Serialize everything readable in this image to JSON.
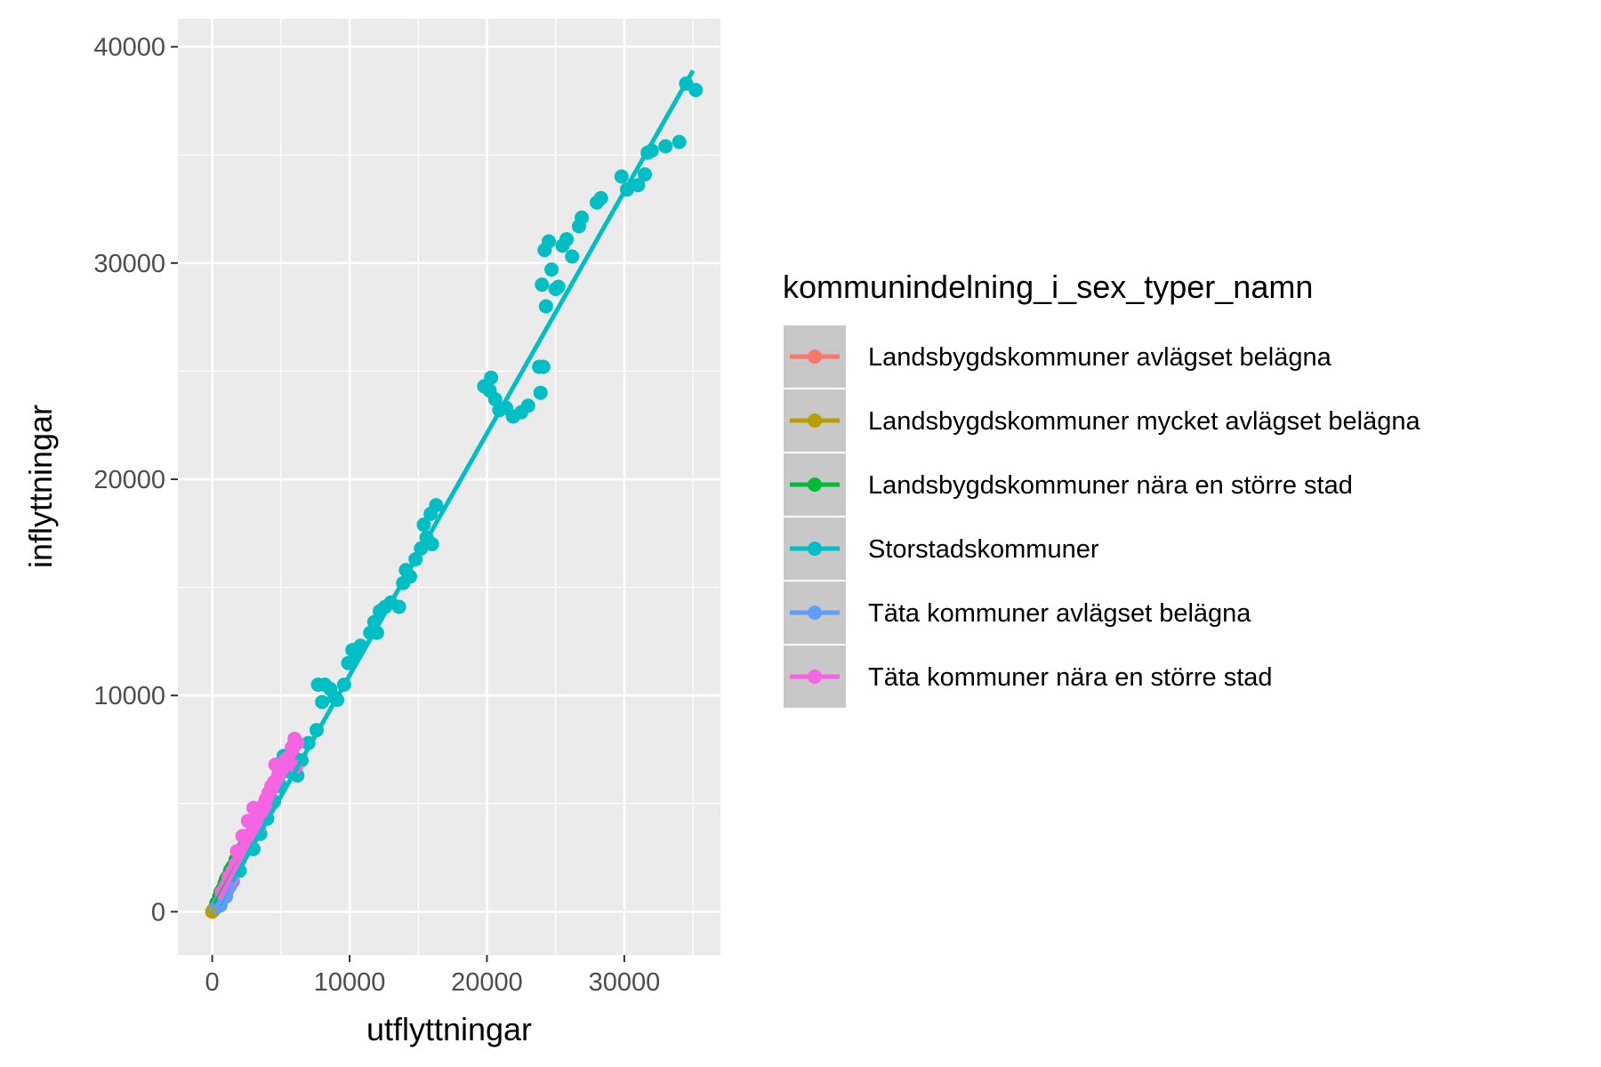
{
  "chart_data": {
    "type": "scatter",
    "title": "",
    "xlabel": "utflyttningar",
    "ylabel": "inflyttningar",
    "xlim": [
      -2500,
      37000
    ],
    "ylim": [
      -2000,
      41300
    ],
    "x_ticks": [
      0,
      10000,
      20000,
      30000
    ],
    "x_tick_labels": [
      "0",
      "10000",
      "20000",
      "30000"
    ],
    "y_ticks": [
      0,
      10000,
      20000,
      30000,
      40000
    ],
    "y_tick_labels": [
      "0",
      "10000",
      "20000",
      "30000",
      "40000"
    ],
    "grid": true,
    "legend": {
      "title": "kommunindelning_i_sex_typer_namn",
      "position": "right"
    },
    "series": [
      {
        "name": "Landsbygdskommuner avlägset belägna",
        "color": "#F8766D",
        "fit": [
          [
            0,
            20
          ],
          [
            350,
            330
          ]
        ],
        "points": [
          [
            0,
            0
          ],
          [
            50,
            40
          ],
          [
            100,
            70
          ],
          [
            150,
            120
          ],
          [
            80,
            60
          ],
          [
            200,
            180
          ],
          [
            120,
            100
          ],
          [
            250,
            210
          ],
          [
            60,
            50
          ],
          [
            180,
            150
          ]
        ]
      },
      {
        "name": "Landsbygdskommuner mycket avlägset belägna",
        "color": "#B79F00",
        "fit": [
          [
            0,
            10
          ],
          [
            250,
            240
          ]
        ],
        "points": [
          [
            20,
            15
          ],
          [
            60,
            50
          ],
          [
            100,
            90
          ],
          [
            150,
            130
          ],
          [
            200,
            170
          ],
          [
            80,
            80
          ]
        ]
      },
      {
        "name": "Landsbygdskommuner nära en större stad",
        "color": "#00BA38",
        "fit": [
          [
            200,
            350
          ],
          [
            2800,
            3300
          ]
        ],
        "points": [
          [
            300,
            400
          ],
          [
            500,
            700
          ],
          [
            700,
            1000
          ],
          [
            900,
            1300
          ],
          [
            1100,
            1600
          ],
          [
            1300,
            1900
          ],
          [
            1500,
            2100
          ],
          [
            1700,
            2400
          ],
          [
            1900,
            2600
          ],
          [
            2100,
            2800
          ],
          [
            600,
            900
          ],
          [
            1000,
            1500
          ],
          [
            1400,
            2000
          ],
          [
            2300,
            3000
          ],
          [
            800,
            1100
          ]
        ]
      },
      {
        "name": "Storstadskommuner",
        "color": "#00BFC4",
        "fit": [
          [
            500,
            300
          ],
          [
            35000,
            38900
          ]
        ],
        "points": [
          [
            1000,
            800
          ],
          [
            2000,
            1900
          ],
          [
            3000,
            2900
          ],
          [
            3500,
            3600
          ],
          [
            4000,
            4300
          ],
          [
            4500,
            5100
          ],
          [
            5000,
            5800
          ],
          [
            5500,
            6500
          ],
          [
            6000,
            7100
          ],
          [
            6500,
            7000
          ],
          [
            5200,
            7200
          ],
          [
            5800,
            7500
          ],
          [
            6200,
            6300
          ],
          [
            4800,
            6200
          ],
          [
            7000,
            7800
          ],
          [
            7600,
            8400
          ],
          [
            8000,
            9700
          ],
          [
            8200,
            10500
          ],
          [
            8600,
            10300
          ],
          [
            8900,
            9900
          ],
          [
            7700,
            10500
          ],
          [
            9100,
            9800
          ],
          [
            9600,
            10500
          ],
          [
            9900,
            11500
          ],
          [
            10200,
            12100
          ],
          [
            10800,
            12300
          ],
          [
            11500,
            12900
          ],
          [
            10400,
            11900
          ],
          [
            11800,
            13400
          ],
          [
            12200,
            13900
          ],
          [
            12600,
            14100
          ],
          [
            12000,
            12900
          ],
          [
            13000,
            14300
          ],
          [
            13600,
            14100
          ],
          [
            13900,
            15200
          ],
          [
            14100,
            15800
          ],
          [
            14400,
            15500
          ],
          [
            14800,
            16300
          ],
          [
            15200,
            16800
          ],
          [
            15600,
            17300
          ],
          [
            15400,
            17900
          ],
          [
            15900,
            18400
          ],
          [
            16300,
            18800
          ],
          [
            16000,
            17000
          ],
          [
            19800,
            24300
          ],
          [
            20300,
            24700
          ],
          [
            20600,
            23700
          ],
          [
            20200,
            24100
          ],
          [
            20900,
            23200
          ],
          [
            21400,
            23300
          ],
          [
            21900,
            22900
          ],
          [
            22500,
            23100
          ],
          [
            23000,
            23400
          ],
          [
            23800,
            25200
          ],
          [
            24100,
            25200
          ],
          [
            23900,
            24000
          ],
          [
            24000,
            29000
          ],
          [
            24200,
            30600
          ],
          [
            24500,
            31000
          ],
          [
            24700,
            29700
          ],
          [
            25200,
            28900
          ],
          [
            25500,
            30800
          ],
          [
            25800,
            31100
          ],
          [
            26200,
            30300
          ],
          [
            26700,
            31700
          ],
          [
            26900,
            32100
          ],
          [
            24300,
            28000
          ],
          [
            25000,
            28800
          ],
          [
            28000,
            32800
          ],
          [
            28300,
            33000
          ],
          [
            29800,
            34000
          ],
          [
            30200,
            33400
          ],
          [
            31000,
            33600
          ],
          [
            31700,
            35100
          ],
          [
            32000,
            35200
          ],
          [
            33000,
            35400
          ],
          [
            34000,
            35600
          ],
          [
            34500,
            38300
          ],
          [
            35200,
            38000
          ],
          [
            31500,
            34100
          ]
        ]
      },
      {
        "name": "Täta kommuner avlägset belägna",
        "color": "#619CFF",
        "fit": [
          [
            200,
            150
          ],
          [
            1500,
            1400
          ]
        ],
        "points": [
          [
            300,
            200
          ],
          [
            500,
            400
          ],
          [
            700,
            600
          ],
          [
            900,
            800
          ],
          [
            1100,
            1000
          ],
          [
            1300,
            1200
          ],
          [
            1500,
            1400
          ],
          [
            800,
            900
          ],
          [
            600,
            300
          ],
          [
            1000,
            700
          ]
        ]
      },
      {
        "name": "Täta kommuner nära en större stad",
        "color": "#F564E3",
        "fit": [
          [
            500,
            550
          ],
          [
            6200,
            7500
          ]
        ],
        "points": [
          [
            700,
            900
          ],
          [
            1000,
            1200
          ],
          [
            1200,
            1600
          ],
          [
            1500,
            1900
          ],
          [
            1700,
            2200
          ],
          [
            1900,
            2300
          ],
          [
            2100,
            2700
          ],
          [
            2300,
            2900
          ],
          [
            2500,
            3100
          ],
          [
            2700,
            3300
          ],
          [
            2900,
            3700
          ],
          [
            3100,
            4100
          ],
          [
            3300,
            4400
          ],
          [
            3500,
            4600
          ],
          [
            3700,
            4900
          ],
          [
            3900,
            5200
          ],
          [
            4100,
            5500
          ],
          [
            4300,
            5800
          ],
          [
            4500,
            6000
          ],
          [
            4800,
            6300
          ],
          [
            5100,
            6600
          ],
          [
            5500,
            7100
          ],
          [
            5800,
            7600
          ],
          [
            6000,
            8000
          ],
          [
            6200,
            7800
          ],
          [
            3000,
            4800
          ],
          [
            2600,
            4200
          ],
          [
            2200,
            3500
          ],
          [
            1800,
            2800
          ],
          [
            4600,
            6800
          ],
          [
            5300,
            7000
          ],
          [
            1400,
            1500
          ],
          [
            2000,
            2400
          ],
          [
            3400,
            3900
          ],
          [
            4000,
            4700
          ],
          [
            6100,
            6700
          ]
        ]
      }
    ]
  }
}
